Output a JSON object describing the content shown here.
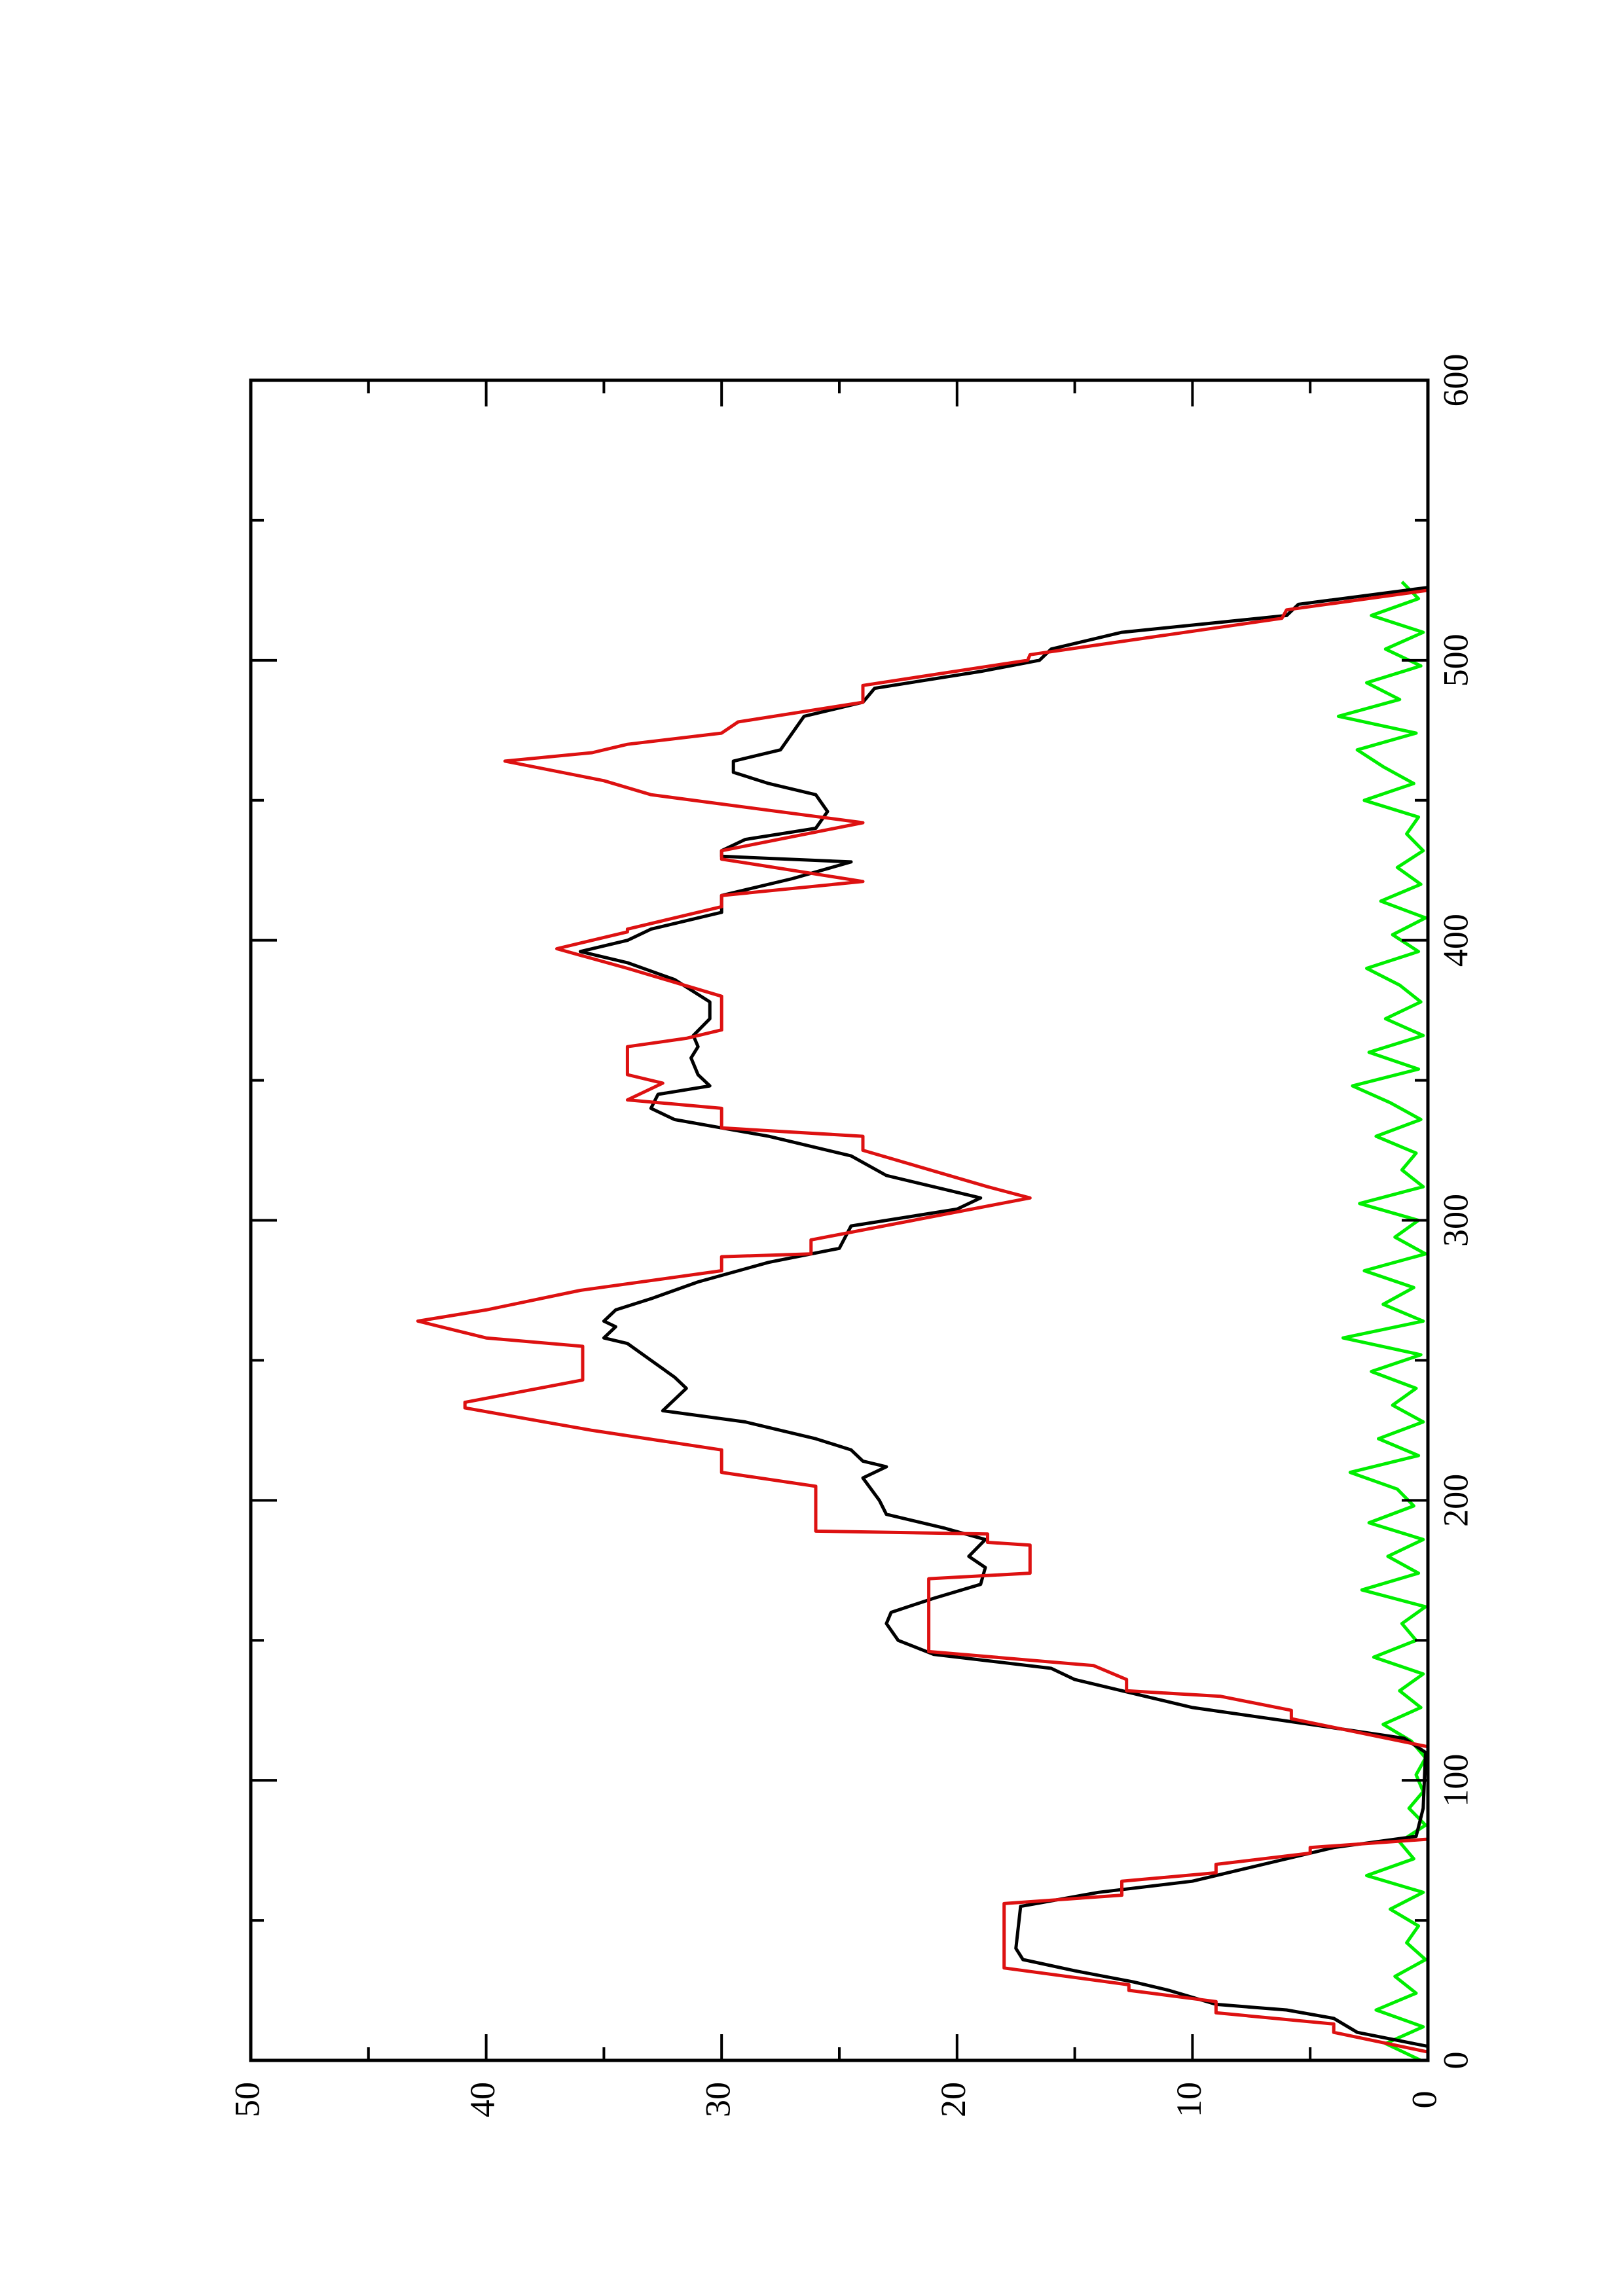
{
  "chart_data": {
    "type": "line",
    "xlim": [
      0,
      600
    ],
    "xticks": [
      0,
      100,
      200,
      300,
      400,
      500,
      600
    ],
    "xminorticks": [
      50,
      150,
      250,
      350,
      450,
      550
    ],
    "ylim": [
      0,
      50
    ],
    "yticks": [
      0,
      10,
      20,
      30,
      40,
      50
    ],
    "yminorticks": [
      5,
      15,
      25,
      35,
      45
    ],
    "series": [
      {
        "color": "#00ee00",
        "x": [
          0,
          6,
          12,
          18,
          24,
          30,
          36,
          42,
          48,
          54,
          60,
          66,
          72,
          78,
          84,
          90,
          96,
          102,
          108,
          114,
          120,
          126,
          132,
          138,
          144,
          150,
          156,
          162,
          168,
          174,
          180,
          186,
          192,
          198,
          204,
          210,
          216,
          222,
          228,
          234,
          240,
          246,
          252,
          258,
          264,
          270,
          276,
          282,
          288,
          294,
          300,
          306,
          312,
          318,
          324,
          330,
          336,
          342,
          348,
          354,
          360,
          366,
          372,
          378,
          384,
          390,
          396,
          402,
          408,
          414,
          420,
          426,
          432,
          438,
          444,
          450,
          456,
          462,
          468,
          474,
          480,
          486,
          492,
          498,
          504,
          510,
          516,
          522,
          528
        ],
        "values": [
          0.3,
          1.8,
          0.2,
          2.2,
          0.5,
          1.4,
          0.1,
          0.9,
          0.4,
          1.6,
          0.2,
          2.6,
          0.6,
          1.2,
          0.1,
          0.8,
          0.2,
          0.5,
          0.1,
          0.7,
          1.9,
          0.3,
          1.2,
          0.2,
          2.3,
          0.5,
          1.1,
          0.1,
          2.8,
          0.4,
          1.7,
          0.2,
          2.5,
          0.6,
          1.3,
          3.3,
          0.4,
          2.1,
          0.2,
          1.5,
          0.5,
          2.4,
          0.3,
          3.6,
          0.2,
          1.9,
          0.6,
          2.7,
          0.1,
          1.4,
          0.4,
          2.9,
          0.2,
          1.1,
          0.5,
          2.2,
          0.3,
          1.6,
          3.2,
          0.4,
          2.5,
          0.2,
          1.8,
          0.3,
          1.2,
          2.6,
          0.4,
          1.5,
          0.1,
          2.0,
          0.3,
          1.3,
          0.2,
          0.9,
          0.4,
          2.7,
          0.6,
          1.9,
          3.0,
          0.5,
          3.8,
          1.2,
          2.6,
          0.3,
          1.8,
          0.2,
          2.4,
          0.4,
          1.1
        ]
      },
      {
        "color": "#000000",
        "x": [
          5,
          10,
          15,
          18,
          20,
          25,
          28,
          32,
          36,
          40,
          55,
          60,
          64,
          68,
          72,
          76,
          80,
          90,
          110,
          115,
          120,
          126,
          130,
          136,
          140,
          145,
          150,
          156,
          160,
          165,
          170,
          176,
          180,
          186,
          190,
          195,
          200,
          208,
          212,
          214,
          218,
          222,
          228,
          232,
          236,
          240,
          244,
          250,
          256,
          258,
          262,
          264,
          268,
          272,
          278,
          285,
          290,
          298,
          304,
          308,
          316,
          323,
          330,
          336,
          340,
          345,
          348,
          352,
          358,
          362,
          366,
          372,
          378,
          386,
          392,
          396,
          400,
          404,
          410,
          416,
          422,
          428,
          430,
          432,
          436,
          440,
          446,
          452,
          456,
          460,
          464,
          468,
          474,
          480,
          485,
          490,
          496,
          500,
          504,
          510,
          516,
          520,
          526
        ],
        "values": [
          0,
          3,
          4,
          6,
          9,
          11,
          12.5,
          15,
          17.2,
          17.5,
          17.3,
          14,
          10,
          8,
          6,
          4,
          0.5,
          0.2,
          0.1,
          1,
          5,
          10,
          12,
          15,
          16,
          21,
          22.5,
          23,
          22.8,
          21,
          19,
          18.8,
          19.5,
          18.8,
          20.5,
          23,
          23.3,
          24,
          23,
          24,
          24.5,
          26,
          29,
          32.5,
          32,
          31.5,
          32,
          33,
          34,
          35,
          34.5,
          35,
          34.5,
          33,
          31,
          28,
          25,
          24.5,
          20,
          19,
          23,
          24.5,
          28,
          32,
          33,
          32.7,
          30.5,
          31,
          31.3,
          31,
          31.2,
          30.5,
          30.5,
          32,
          34,
          36,
          34,
          33,
          30,
          30,
          27,
          24.5,
          30,
          30,
          29,
          26,
          25.5,
          26,
          28,
          29.5,
          29.5,
          27.5,
          27,
          26.5,
          24,
          23.5,
          19,
          16.5,
          16,
          13,
          6,
          5.5,
          0
        ]
      },
      {
        "color": "#dd1111",
        "x": [
          3,
          10,
          13,
          17,
          21,
          25,
          27,
          33,
          56,
          59,
          64,
          67,
          70,
          74,
          76,
          79,
          112,
          122,
          125,
          130,
          132,
          136,
          141,
          146,
          172,
          174,
          184,
          185,
          188,
          189,
          205,
          210,
          218,
          225,
          233,
          235,
          243,
          255,
          258,
          264,
          268,
          275,
          282,
          287,
          288,
          293,
          308,
          312,
          325,
          330,
          333,
          340,
          343,
          349,
          352,
          362,
          365,
          368,
          380,
          385,
          390,
          397,
          403,
          404,
          412,
          416,
          421,
          429,
          432,
          442,
          452,
          457,
          464,
          467,
          470,
          474,
          478,
          485,
          491,
          500,
          502,
          515,
          518,
          525
        ],
        "values": [
          0,
          4,
          4,
          9,
          9,
          12.7,
          12.7,
          18,
          18,
          13,
          13,
          9,
          9,
          5,
          5,
          0,
          0,
          5.8,
          5.8,
          8.8,
          12.8,
          12.8,
          14.2,
          21.2,
          21.2,
          16.9,
          16.9,
          18.7,
          18.7,
          26,
          26,
          30,
          30,
          35.5,
          40.9,
          40.9,
          35.9,
          35.9,
          40,
          42.9,
          40,
          36,
          30,
          30,
          26.2,
          26.2,
          16.9,
          18.7,
          24,
          24,
          30,
          30,
          34,
          32.5,
          34,
          34,
          31.5,
          30,
          30,
          32,
          34,
          37,
          34,
          34,
          30,
          30,
          24,
          30,
          30,
          24,
          33,
          35,
          39.2,
          35.5,
          34,
          30,
          29.3,
          24,
          24,
          17,
          16.9,
          6.2,
          6,
          0
        ]
      }
    ]
  }
}
